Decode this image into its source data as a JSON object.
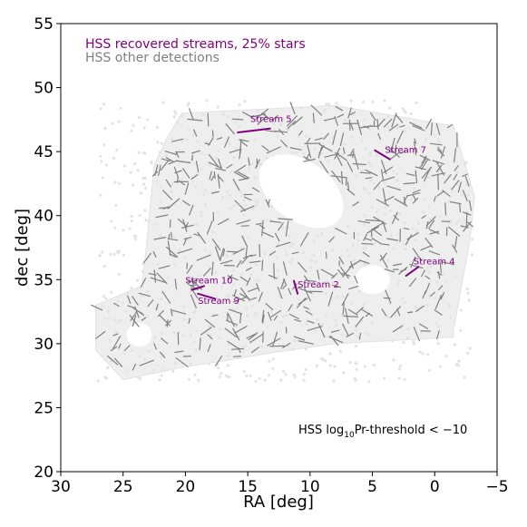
{
  "chart_data": {
    "type": "scatter",
    "xlabel": "RA [deg]",
    "ylabel": "dec [deg]",
    "xlim": [
      30,
      -5
    ],
    "ylim": [
      20,
      55
    ],
    "x_ticks": [
      30,
      25,
      20,
      15,
      10,
      5,
      0,
      -5
    ],
    "x_tick_labels": [
      "30",
      "25",
      "20",
      "15",
      "10",
      "5",
      "0",
      "−5"
    ],
    "y_ticks": [
      20,
      25,
      30,
      35,
      40,
      45,
      50,
      55
    ],
    "y_tick_labels": [
      "20",
      "25",
      "30",
      "35",
      "40",
      "45",
      "50",
      "55"
    ],
    "grid": false,
    "legend": {
      "placement": "top-left",
      "entries": [
        {
          "label": "HSS recovered streams, 25% stars",
          "color": "#800080"
        },
        {
          "label": "HSS other detections",
          "color": "#808080"
        }
      ]
    },
    "annotation": {
      "prefix": "HSS log",
      "sub": "10",
      "suffix": "Pr-threshold < −10"
    },
    "series": [
      {
        "name": "HSS recovered streams, 25% stars",
        "color": "#800080",
        "segments": [
          {
            "label": "Stream 5",
            "ra": [
              15.8,
              13.2
            ],
            "dec": [
              46.5,
              46.8
            ],
            "label_ra": 14.8,
            "label_dec": 47.3
          },
          {
            "label": "Stream 7",
            "ra": [
              4.8,
              3.6
            ],
            "dec": [
              45.1,
              44.4
            ],
            "label_ra": 4.0,
            "label_dec": 44.9
          },
          {
            "label": "Stream 4",
            "ra": [
              2.3,
              1.3
            ],
            "dec": [
              35.3,
              36.0
            ],
            "label_ra": 1.7,
            "label_dec": 36.2
          },
          {
            "label": "Stream 2",
            "ra": [
              11.0,
              11.3
            ],
            "dec": [
              33.9,
              34.9
            ],
            "label_ra": 11.0,
            "label_dec": 34.4
          },
          {
            "label": "Stream 10",
            "ra": [
              19.5,
              18.5
            ],
            "dec": [
              34.2,
              34.5
            ],
            "label_ra": 20.0,
            "label_dec": 34.7
          },
          {
            "label": "Stream 9",
            "ra": [
              19.0,
              17.6
            ],
            "dec": [
              33.9,
              33.5
            ],
            "label_ra": 19.0,
            "label_dec": 33.1
          }
        ]
      },
      {
        "name": "HSS other detections",
        "color": "#808080",
        "count": 520
      }
    ]
  }
}
